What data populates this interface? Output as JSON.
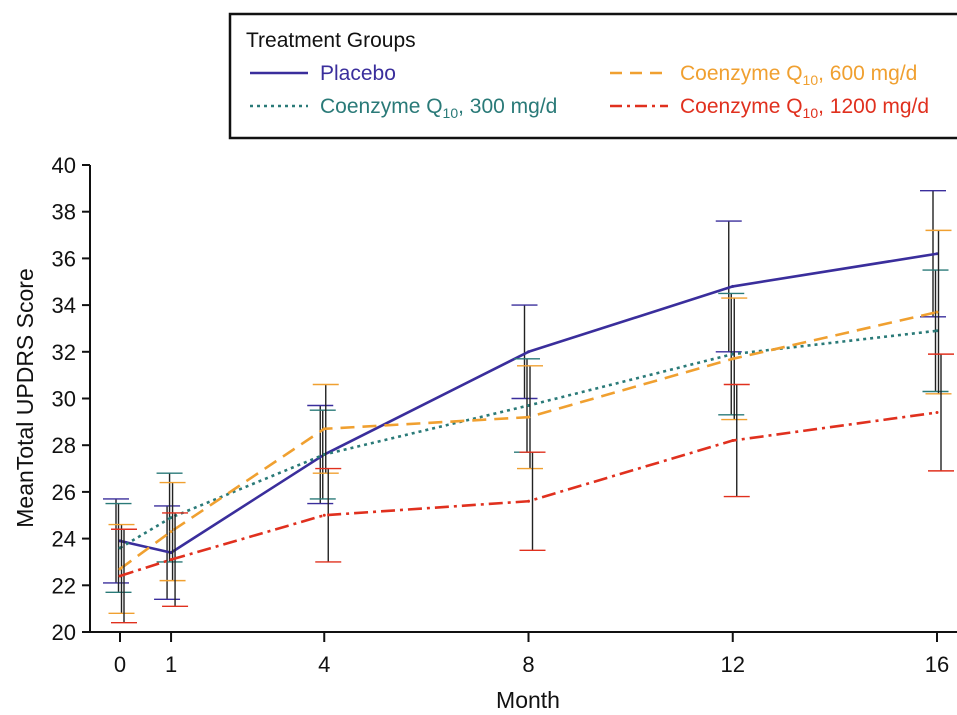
{
  "chart_data": {
    "type": "line",
    "xlabel": "Month",
    "ylabel": "MeanTotal UPDRS Score",
    "x": [
      0,
      1,
      4,
      8,
      12,
      16
    ],
    "xticks": [
      "0",
      "1",
      "4",
      "8",
      "12",
      "16"
    ],
    "yticks": [
      "20",
      "22",
      "24",
      "26",
      "28",
      "30",
      "32",
      "34",
      "36",
      "38",
      "40"
    ],
    "xlim": [
      0,
      16
    ],
    "ylim": [
      20,
      40
    ],
    "grid": false,
    "legend_title": "Treatment Groups",
    "legend_position": "top",
    "series": [
      {
        "name": "Placebo",
        "name_sub": "",
        "name_suffix": "",
        "color": "#3a2e9c",
        "dash": "solid",
        "values": [
          23.9,
          23.4,
          27.6,
          32.0,
          34.8,
          36.2
        ],
        "err": [
          1.8,
          2.0,
          2.1,
          2.0,
          2.8,
          2.7
        ]
      },
      {
        "name": "Coenzyme Q",
        "name_sub": "10",
        "name_suffix": ", 300 mg/d",
        "color": "#2a7a78",
        "dash": "dotted",
        "values": [
          23.6,
          24.9,
          27.6,
          29.7,
          31.9,
          32.9
        ],
        "err": [
          1.9,
          1.9,
          1.9,
          2.0,
          2.6,
          2.6
        ]
      },
      {
        "name": "Coenzyme Q",
        "name_sub": "10",
        "name_suffix": ", 600 mg/d",
        "color": "#f0a030",
        "dash": "dashed",
        "values": [
          22.7,
          24.3,
          28.7,
          29.2,
          31.7,
          33.7
        ],
        "err": [
          1.9,
          2.1,
          1.9,
          2.2,
          2.6,
          3.5
        ]
      },
      {
        "name": "Coenzyme Q",
        "name_sub": "10",
        "name_suffix": ", 1200 mg/d",
        "color": "#e0301e",
        "dash": "dashdot",
        "values": [
          22.4,
          23.1,
          25.0,
          25.6,
          28.2,
          29.4
        ],
        "err": [
          2.0,
          2.0,
          2.0,
          2.1,
          2.4,
          2.5
        ]
      }
    ]
  }
}
